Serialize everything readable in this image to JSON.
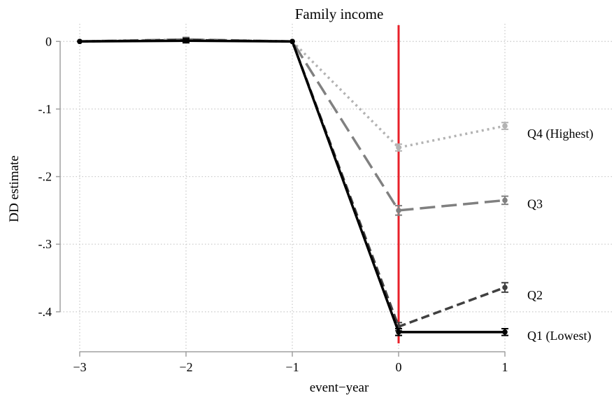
{
  "chart_data": {
    "type": "line",
    "title": "Family income",
    "xlabel": "event−year",
    "ylabel": "DD estimate",
    "x": [
      -3,
      -2,
      -1,
      0,
      1
    ],
    "xticks": [
      "−3",
      "−2",
      "−1",
      "0",
      "1"
    ],
    "yticks": [
      {
        "value": 0,
        "label": "0"
      },
      {
        "value": -0.1,
        "label": "-.1"
      },
      {
        "value": -0.2,
        "label": "-.2"
      },
      {
        "value": -0.3,
        "label": "-.3"
      },
      {
        "value": -0.4,
        "label": "-.4"
      }
    ],
    "xlim": [
      -3,
      1
    ],
    "ylim": [
      -0.455,
      0.022
    ],
    "grid": true,
    "reference_line": {
      "x": 0,
      "color": "#e8202a"
    },
    "series": [
      {
        "name": "Q4 (Highest)",
        "values": [
          0,
          0.003,
          0,
          -0.157,
          -0.125
        ],
        "errors": [
          0,
          0.003,
          0,
          0.005,
          0.005
        ],
        "color": "#b3b3b3",
        "dash": "dotted"
      },
      {
        "name": "Q3",
        "values": [
          0,
          0.003,
          0,
          -0.25,
          -0.235
        ],
        "errors": [
          0,
          0.003,
          0,
          0.007,
          0.006
        ],
        "color": "#808080",
        "dash": "longdash"
      },
      {
        "name": "Q2",
        "values": [
          0,
          0.002,
          0,
          -0.422,
          -0.364
        ],
        "errors": [
          0,
          0.003,
          0,
          0.006,
          0.007
        ],
        "color": "#404040",
        "dash": "dash"
      },
      {
        "name": "Q1 (Lowest)",
        "values": [
          0,
          0.001,
          0,
          -0.43,
          -0.43
        ],
        "errors": [
          0,
          0.003,
          0,
          0.005,
          0.005
        ],
        "color": "#000000",
        "dash": "solid"
      }
    ]
  }
}
